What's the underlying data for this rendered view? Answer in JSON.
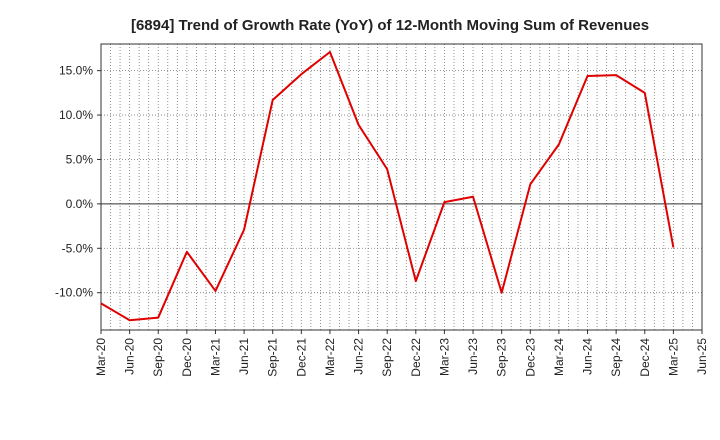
{
  "chart_data": {
    "type": "line",
    "title": "[6894]  Trend of Growth Rate (YoY) of 12-Month Moving Sum of Revenues",
    "xlabel": "",
    "ylabel": "",
    "x_ticks": [
      "Mar-20",
      "Jun-20",
      "Sep-20",
      "Dec-20",
      "Mar-21",
      "Jun-21",
      "Sep-21",
      "Dec-21",
      "Mar-22",
      "Jun-22",
      "Sep-22",
      "Dec-22",
      "Mar-23",
      "Jun-23",
      "Sep-23",
      "Dec-23",
      "Mar-24",
      "Jun-24",
      "Sep-24",
      "Dec-24",
      "Mar-25",
      "Jun-25"
    ],
    "y_ticks": [
      -10.0,
      -5.0,
      0.0,
      5.0,
      10.0,
      15.0
    ],
    "y_tick_format": "percent_1dp",
    "ylim": [
      -14.2,
      18.0
    ],
    "grid": true,
    "line_color": "#e00000",
    "series": [
      {
        "x": [
          "Mar-20",
          "Jun-20",
          "Sep-20",
          "Dec-20",
          "Mar-21",
          "Jun-21",
          "Sep-21",
          "Dec-21",
          "Mar-22",
          "Jun-22",
          "Sep-22",
          "Dec-22",
          "Mar-23",
          "Jun-23",
          "Sep-23",
          "Dec-23",
          "Mar-24",
          "Jun-24",
          "Sep-24",
          "Dec-24",
          "Mar-25"
        ],
        "values": [
          -11.2,
          -13.1,
          -12.8,
          -5.4,
          -9.8,
          -2.9,
          11.7,
          14.6,
          17.1,
          8.9,
          3.9,
          -8.7,
          0.2,
          0.8,
          -10.0,
          2.2,
          6.7,
          14.4,
          14.5,
          12.5,
          -4.9
        ]
      }
    ]
  }
}
